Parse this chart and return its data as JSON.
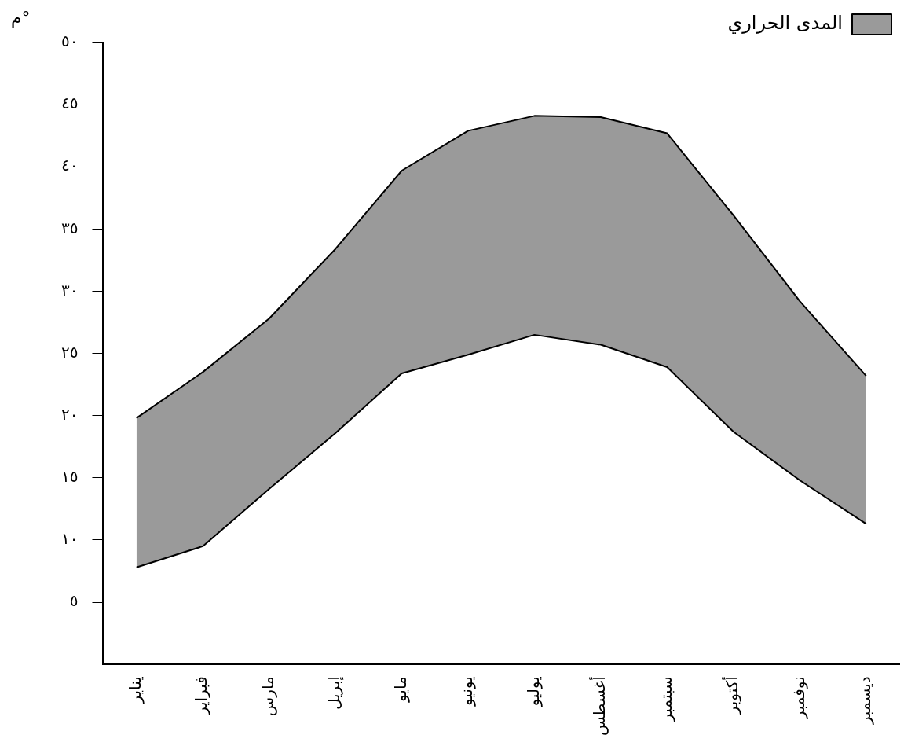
{
  "chart_data": {
    "type": "area",
    "ylabel": "°م",
    "categories": [
      "يناير",
      "فبراير",
      "مارس",
      "إبريل",
      "مايو",
      "يونيو",
      "يوليو",
      "أغسطس",
      "سبتمبر",
      "أكتوبر",
      "نوفمبر",
      "ديسمبر"
    ],
    "series": [
      {
        "type": "line",
        "color": "#000000",
        "values": [
          7.8,
          9.5,
          14.1,
          18.6,
          23.4,
          24.9,
          26.5,
          25.7,
          23.9,
          18.7,
          14.8,
          11.3
        ]
      },
      {
        "name": "المدى الحراري",
        "color": "#9a9a9a",
        "values": [
          19.8,
          23.5,
          27.8,
          33.4,
          39.7,
          42.9,
          44.1,
          44.0,
          42.7,
          36.1,
          29.2,
          23.2
        ]
      }
    ],
    "ylim": [
      0,
      50
    ],
    "yticks": [
      {
        "value": 5,
        "label": "٥"
      },
      {
        "value": 10,
        "label": "١٠"
      },
      {
        "value": 15,
        "label": "١٥"
      },
      {
        "value": 20,
        "label": "٢٠"
      },
      {
        "value": 25,
        "label": "٢٥"
      },
      {
        "value": 30,
        "label": "٣٠"
      },
      {
        "value": 35,
        "label": "٣٥"
      },
      {
        "value": 40,
        "label": "٤٠"
      },
      {
        "value": 45,
        "label": "٤٥"
      },
      {
        "value": 50,
        "label": "٥٠"
      }
    ],
    "grid": false,
    "legend": "top right"
  }
}
